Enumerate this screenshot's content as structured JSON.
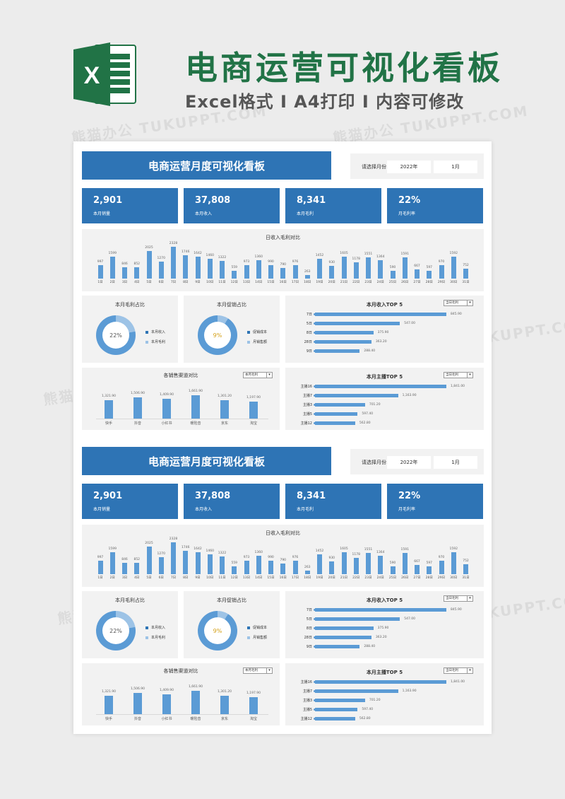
{
  "header": {
    "main_title": "电商运营可视化看板",
    "subtitle": "Excel格式 I A4打印 I 内容可修改",
    "icon": "excel-icon"
  },
  "watermark": "熊猫办公 TUKUPPT.COM",
  "dashboard": {
    "title": "电商运营月度可视化看板",
    "month_selector": {
      "label": "请选择月份:",
      "year": "2022年",
      "month": "1月"
    },
    "kpis": [
      {
        "value": "2,901",
        "label": "本月销量"
      },
      {
        "value": "37,808",
        "label": "本月收入"
      },
      {
        "value": "8,341",
        "label": "本月毛利"
      },
      {
        "value": "22%",
        "label": "月毛利率"
      }
    ],
    "colors": {
      "primary": "#2e74b5",
      "bar": "#5b9bd5",
      "donut_light": "#9dc3e6",
      "center_gold": "#d4a017"
    },
    "daily_chart": {
      "title": "日收入毛利对比",
      "chart_data": {
        "type": "bar",
        "title": "日收入毛利对比",
        "categories": [
          "1日",
          "2日",
          "3日",
          "4日",
          "5日",
          "6日",
          "7日",
          "8日",
          "9日",
          "10日",
          "11日",
          "12日",
          "13日",
          "14日",
          "15日",
          "16日",
          "17日",
          "18日",
          "19日",
          "20日",
          "21日",
          "22日",
          "23日",
          "24日",
          "25日",
          "26日",
          "27日",
          "28日",
          "29日",
          "30日",
          "31日"
        ],
        "values": [
          997,
          1599,
          846,
          852,
          2025,
          1270,
          2328,
          1746,
          1642,
          1460,
          1322,
          559,
          973,
          1360,
          990,
          790,
          976,
          263,
          1452,
          930,
          1605,
          1178,
          1551,
          1364,
          590,
          1591,
          667,
          597,
          970,
          1592,
          752
        ],
        "ylim": [
          0,
          2400
        ]
      }
    },
    "profit_share": {
      "title": "本月毛利占比",
      "center": "22%",
      "chart_data": {
        "type": "pie",
        "labels": [
          "本月收入",
          "本月毛利"
        ],
        "values": [
          78,
          22
        ]
      },
      "legend": [
        "本月收入",
        "本月毛利"
      ]
    },
    "promo_share": {
      "title": "本月促销占比",
      "center": "9%",
      "chart_data": {
        "type": "pie",
        "labels": [
          "促销成本",
          "月销售额"
        ],
        "values": [
          9,
          91
        ]
      },
      "legend": [
        "促销成本",
        "月销售额"
      ]
    },
    "revenue_top5": {
      "title": "本月收入TOP 5",
      "selector": "当日毛利",
      "chart_data": {
        "type": "bar",
        "categories": [
          "7日",
          "5日",
          "8日",
          "28日",
          "9日"
        ],
        "values": [
          845.9,
          547.0,
          375.9,
          363.2,
          288.4
        ]
      },
      "labels": [
        "845.90",
        "547.00",
        "375.90",
        "363.20",
        "288.40"
      ]
    },
    "channel": {
      "title": "各销售渠道对比",
      "selector": "本月毛利",
      "chart_data": {
        "type": "bar",
        "categories": [
          "快手",
          "抖音",
          "小红书",
          "暖险音",
          "京东",
          "淘宝"
        ],
        "values": [
          1321.9,
          1506.9,
          1409.9,
          1661.9,
          1301.2,
          1197.9
        ]
      },
      "labels": [
        "1,321.90",
        "1,506.90",
        "1,409.90",
        "1,661.90",
        "1,301.20",
        "1,197.90"
      ]
    },
    "anchor_top5": {
      "title": "本月主播TOP 5",
      "selector": "当日毛利",
      "chart_data": {
        "type": "bar",
        "categories": [
          "主播16",
          "主播7",
          "主播3",
          "主播5",
          "主播12"
        ],
        "values": [
          1841.0,
          1163.9,
          701.2,
          597.4,
          562.8
        ]
      },
      "labels": [
        "1,841.00",
        "1,163.90",
        "701.20",
        "597.40",
        "562.80"
      ]
    }
  }
}
